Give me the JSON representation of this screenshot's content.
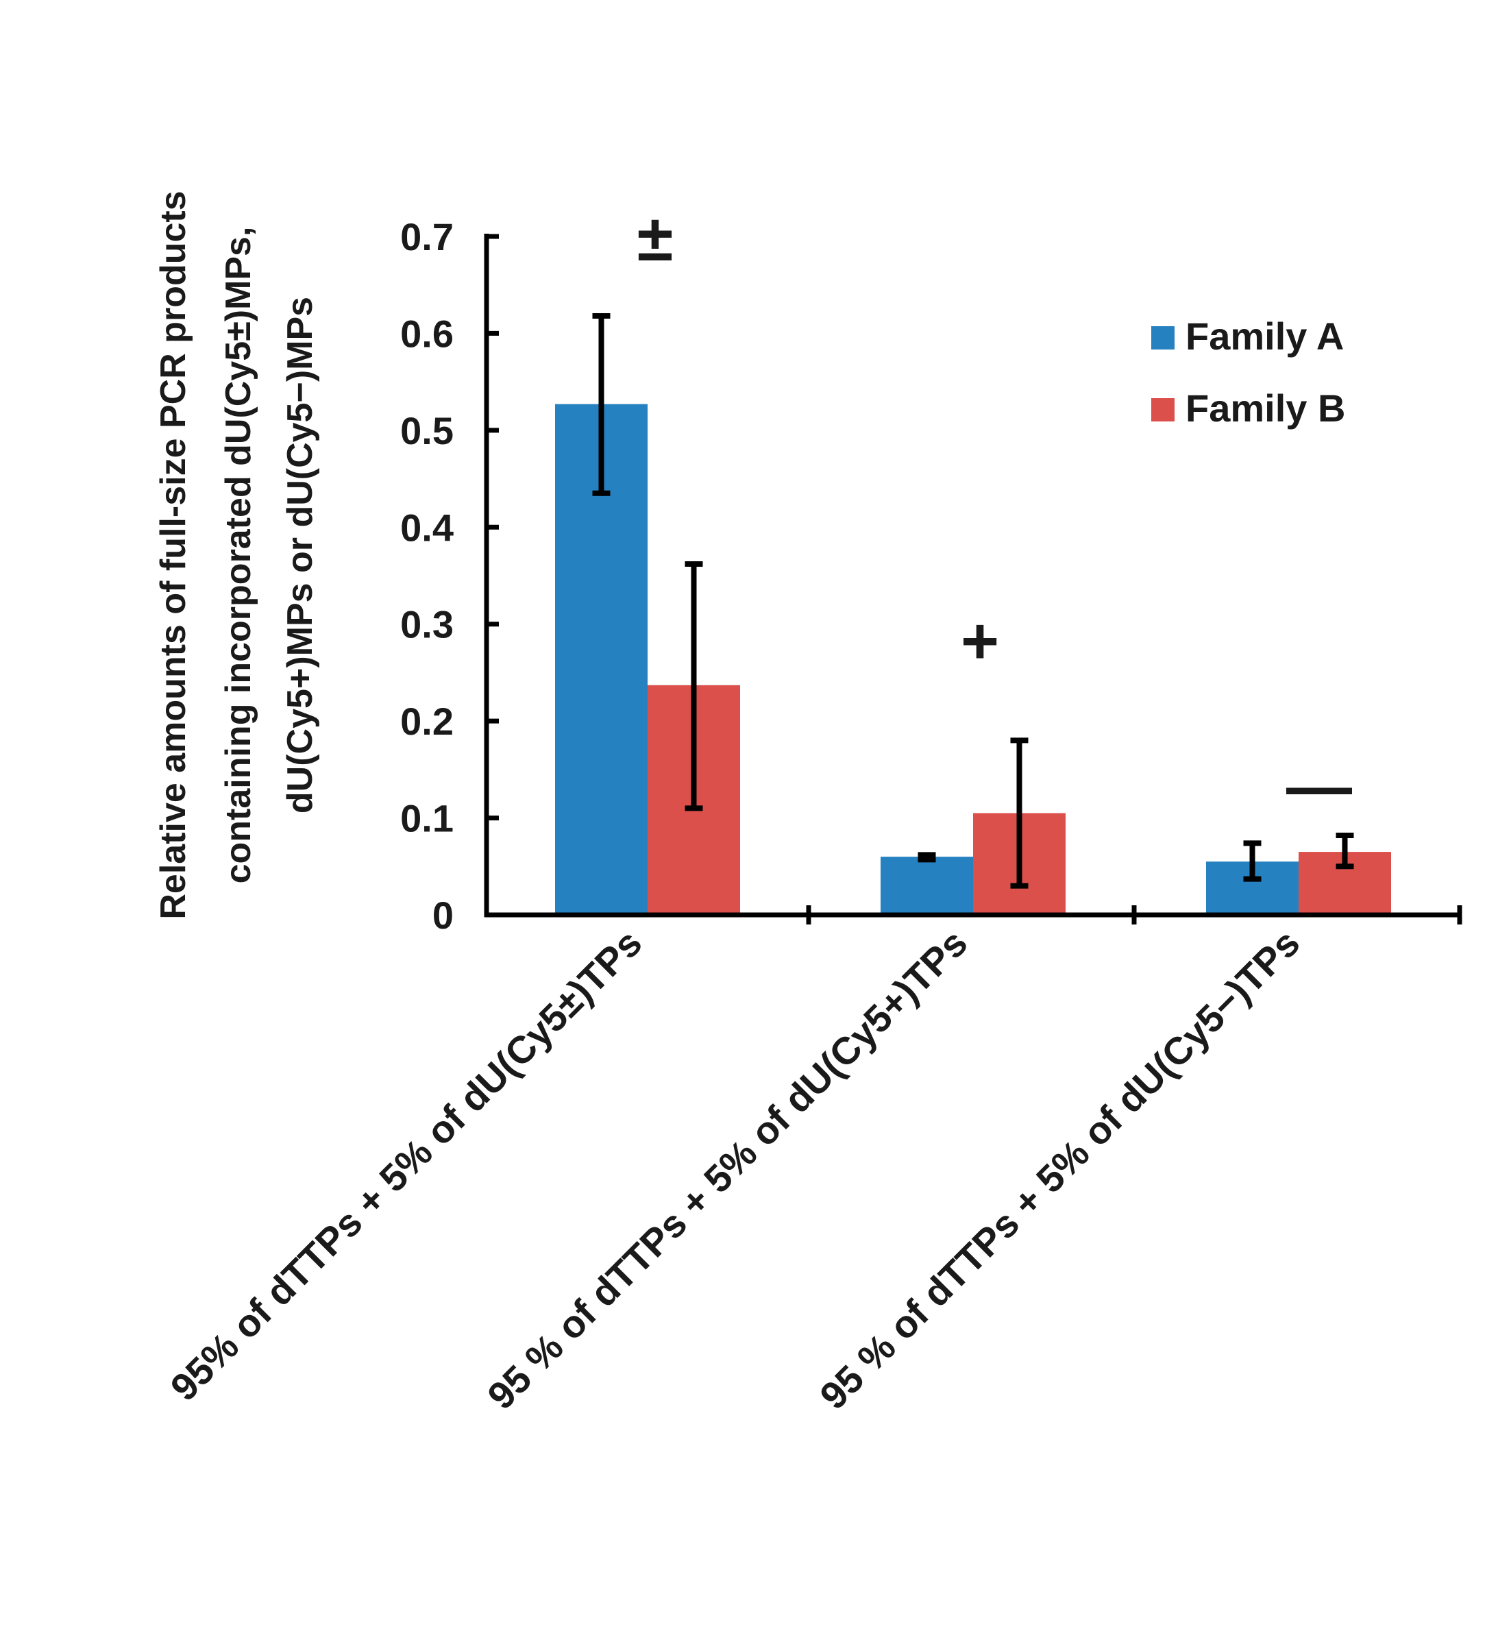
{
  "chart_data": {
    "type": "bar",
    "ylabel_lines": [
      "Relative amounts of full-size PCR products",
      "containing incorporated dU(Cy5±)MPs,",
      "dU(Cy5+)MPs or dU(Cy5−)MPs"
    ],
    "categories": [
      "95% of dTTPs + 5% of dU(Cy5±)TPs",
      "95 % of dTTPs + 5% of dU(Cy5+)TPs",
      "95 % of dTTPs + 5% of dU(Cy5−)TPs"
    ],
    "series": [
      {
        "name": "Family A",
        "color": "#2681c0",
        "values": [
          0.527,
          0.06,
          0.055
        ],
        "error_low": [
          0.435,
          0.057,
          0.037
        ],
        "error_high": [
          0.618,
          0.062,
          0.074
        ]
      },
      {
        "name": "Family B",
        "color": "#dc504c",
        "values": [
          0.237,
          0.105,
          0.065
        ],
        "error_low": [
          0.11,
          0.03,
          0.05
        ],
        "error_high": [
          0.362,
          0.18,
          0.082
        ]
      }
    ],
    "annotations": [
      "±",
      "+",
      "—"
    ],
    "ylim": [
      0,
      0.7
    ],
    "yticks": [
      0,
      0.1,
      0.2,
      0.3,
      0.4,
      0.5,
      0.6,
      0.7
    ],
    "ytick_labels": [
      "0",
      "0.1",
      "0.2",
      "0.3",
      "0.4",
      "0.5",
      "0.6",
      "0.7"
    ],
    "legend_position": "top-right"
  }
}
